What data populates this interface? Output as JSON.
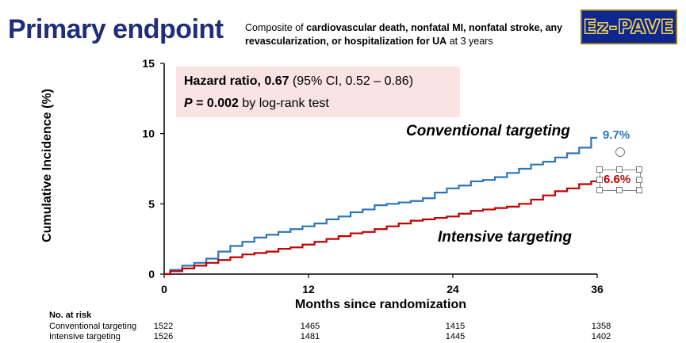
{
  "header": {
    "title": "Primary endpoint",
    "subtitle_prefix": "Composite of ",
    "subtitle_bold": "cardiovascular death, nonfatal MI, nonfatal stroke, any revascularization, or hospitalization for UA",
    "subtitle_suffix": " at 3 years",
    "logo_text": "Ez-PAVE"
  },
  "stats": {
    "hr_label": "Hazard ratio, 0.67",
    "hr_ci": " (95% CI, 0.52 – 0.86)",
    "p_italic": "P",
    "p_value": " = 0.002",
    "p_method": " by log-rank test"
  },
  "chart_data": {
    "type": "line",
    "xlabel": "Months since randomization",
    "ylabel": "Cumulative Incidence (%)",
    "xlim": [
      0,
      36
    ],
    "ylim": [
      0,
      15
    ],
    "x_ticks": [
      "0",
      "12",
      "24",
      "36"
    ],
    "y_ticks": [
      "0",
      "5",
      "10",
      "15"
    ],
    "x": [
      0,
      1,
      2,
      3,
      4,
      5,
      6,
      7,
      8,
      9,
      10,
      11,
      12,
      13,
      14,
      15,
      16,
      17,
      18,
      19,
      20,
      21,
      22,
      23,
      24,
      25,
      26,
      27,
      28,
      29,
      30,
      31,
      32,
      33,
      34,
      35,
      36
    ],
    "series": [
      {
        "name": "Conventional targeting",
        "color": "#2e75b6",
        "end_label": "9.7%",
        "values": [
          0,
          0.3,
          0.6,
          0.8,
          1.1,
          1.6,
          2.0,
          2.3,
          2.6,
          2.8,
          3.0,
          3.2,
          3.4,
          3.6,
          3.9,
          4.1,
          4.4,
          4.6,
          4.9,
          5.0,
          5.1,
          5.2,
          5.4,
          5.8,
          6.1,
          6.3,
          6.6,
          6.7,
          6.9,
          7.2,
          7.5,
          7.8,
          8.0,
          8.3,
          8.6,
          9.0,
          9.7
        ]
      },
      {
        "name": "Intensive targeting",
        "color": "#c00000",
        "end_label": "6.6%",
        "values": [
          0,
          0.2,
          0.4,
          0.6,
          0.8,
          1.0,
          1.2,
          1.4,
          1.5,
          1.6,
          1.8,
          1.9,
          2.1,
          2.3,
          2.5,
          2.7,
          2.9,
          3.0,
          3.2,
          3.4,
          3.6,
          3.8,
          3.9,
          4.0,
          4.1,
          4.3,
          4.5,
          4.6,
          4.7,
          4.8,
          5.0,
          5.3,
          5.6,
          5.9,
          6.1,
          6.4,
          6.6
        ]
      }
    ]
  },
  "risk_table": {
    "title": "No. at risk",
    "rows": [
      {
        "label": "Conventional targeting",
        "values": [
          "1522",
          "1465",
          "1415",
          "1358"
        ]
      },
      {
        "label": "Intensive targeting",
        "values": [
          "1526",
          "1481",
          "1445",
          "1402"
        ]
      }
    ]
  }
}
